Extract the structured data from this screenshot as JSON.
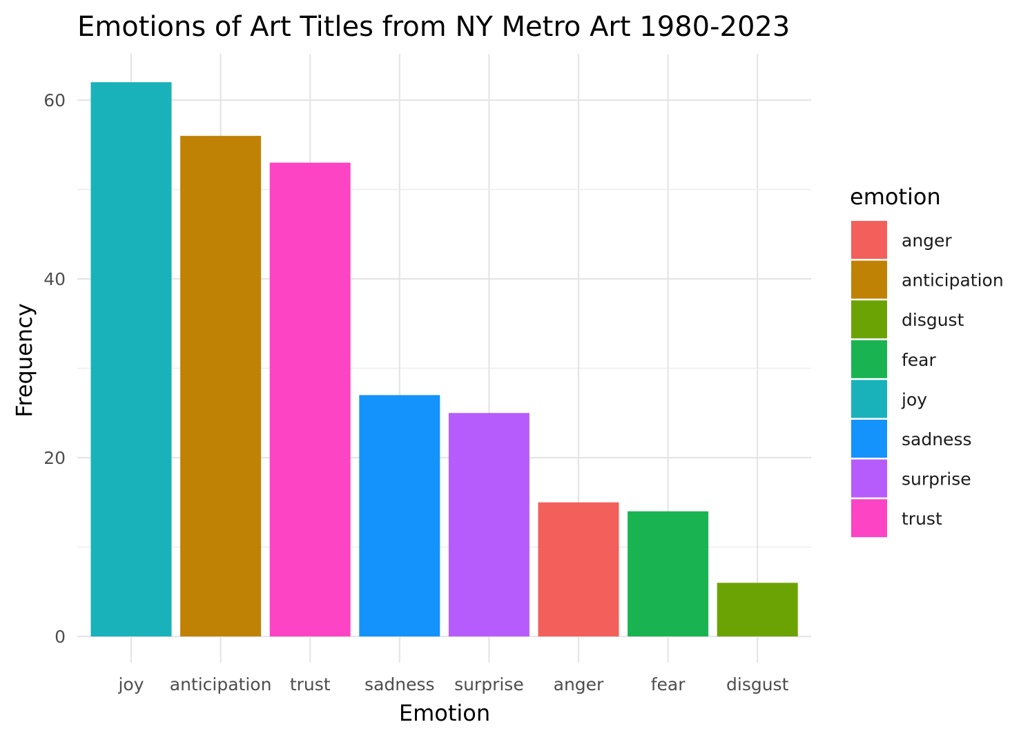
{
  "chart_data": {
    "type": "bar",
    "title": "Emotions of Art Titles from NY Metro Art 1980-2023",
    "xlabel": "Emotion",
    "ylabel": "Frequency",
    "categories": [
      "joy",
      "anticipation",
      "trust",
      "sadness",
      "surprise",
      "anger",
      "fear",
      "disgust"
    ],
    "values": [
      62,
      56,
      53,
      27,
      25,
      15,
      14,
      6
    ],
    "colors": [
      "#19B2BA",
      "#BF8204",
      "#FC44C4",
      "#1493FC",
      "#B65CFC",
      "#F35F5B",
      "#19B451",
      "#6BA304"
    ],
    "ylim": [
      0,
      64
    ],
    "yticks": [
      0,
      20,
      40,
      60
    ],
    "yminor": [
      10,
      30,
      50
    ],
    "grid": true,
    "legend": {
      "title": "emotion",
      "placement": "right",
      "entries": [
        {
          "label": "anger",
          "color": "#F35F5B"
        },
        {
          "label": "anticipation",
          "color": "#BF8204"
        },
        {
          "label": "disgust",
          "color": "#6BA304"
        },
        {
          "label": "fear",
          "color": "#19B451"
        },
        {
          "label": "joy",
          "color": "#19B2BA"
        },
        {
          "label": "sadness",
          "color": "#1493FC"
        },
        {
          "label": "surprise",
          "color": "#B65CFC"
        },
        {
          "label": "trust",
          "color": "#FC44C4"
        }
      ]
    }
  }
}
